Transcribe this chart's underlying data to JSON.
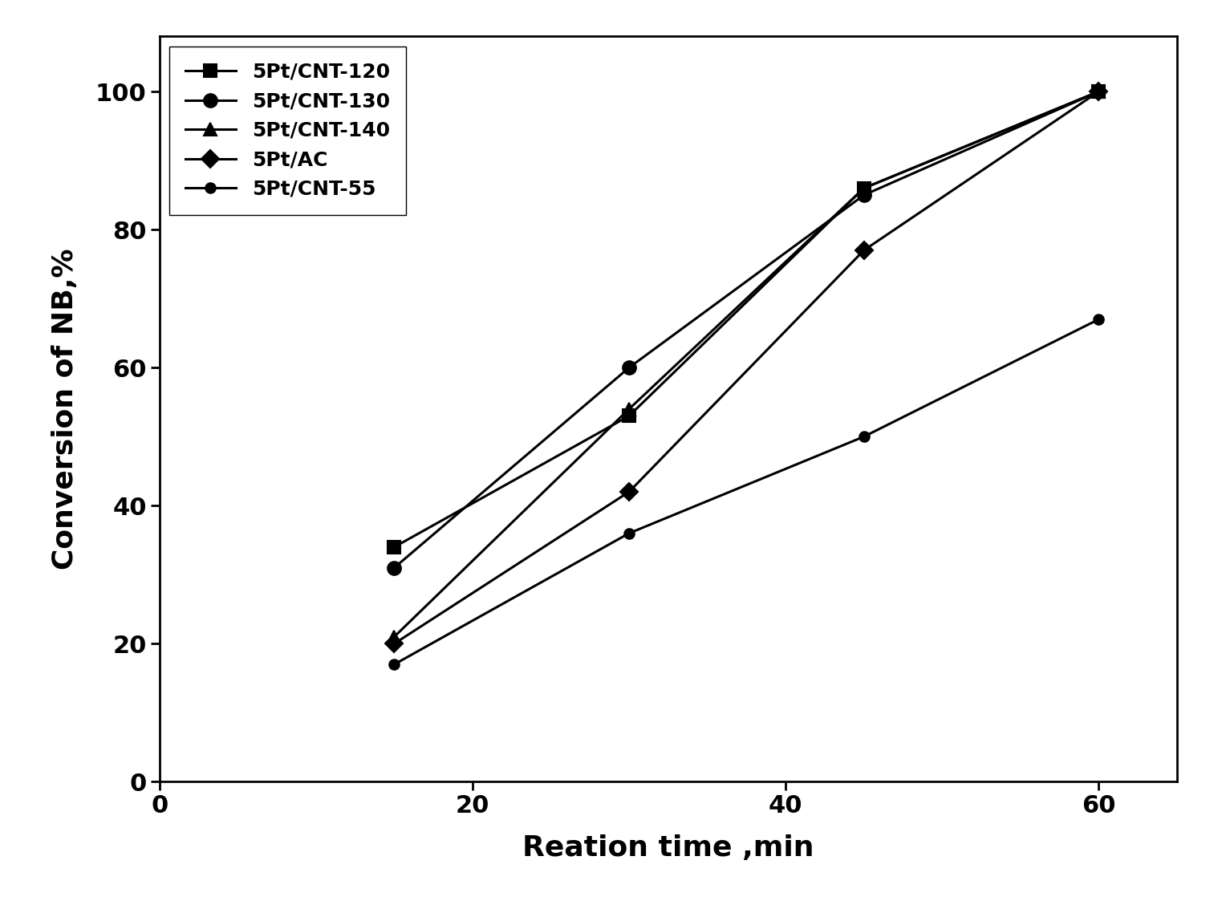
{
  "series": [
    {
      "label": "5Pt/CNT-120",
      "x": [
        15,
        30,
        45,
        60
      ],
      "y": [
        34,
        53,
        86,
        100
      ],
      "marker": "s",
      "markersize": 11,
      "color": "#000000",
      "linewidth": 2.2
    },
    {
      "label": "5Pt/CNT-130",
      "x": [
        15,
        30,
        45,
        60
      ],
      "y": [
        31,
        60,
        85,
        100
      ],
      "marker": "o",
      "markersize": 12,
      "color": "#000000",
      "linewidth": 2.2
    },
    {
      "label": "5Pt/CNT-140",
      "x": [
        15,
        30,
        45,
        60
      ],
      "y": [
        21,
        54,
        86,
        100
      ],
      "marker": "^",
      "markersize": 12,
      "color": "#000000",
      "linewidth": 2.2
    },
    {
      "label": "5Pt/AC",
      "x": [
        15,
        30,
        45,
        60
      ],
      "y": [
        20,
        42,
        77,
        100
      ],
      "marker": "D",
      "markersize": 11,
      "color": "#000000",
      "linewidth": 2.2
    },
    {
      "label": "5Pt/CNT-55",
      "x": [
        15,
        30,
        45,
        60
      ],
      "y": [
        17,
        36,
        50,
        67
      ],
      "marker": "o",
      "markersize": 9,
      "color": "#000000",
      "linewidth": 2.2
    }
  ],
  "xlabel": "Reation time ,min",
  "ylabel": "Conversion of NB,%",
  "xlim": [
    0,
    65
  ],
  "ylim": [
    0,
    108
  ],
  "xticks": [
    0,
    20,
    40,
    60
  ],
  "yticks": [
    0,
    20,
    40,
    60,
    80,
    100
  ],
  "xlabel_fontsize": 26,
  "ylabel_fontsize": 26,
  "tick_fontsize": 22,
  "legend_fontsize": 18,
  "legend_loc": "upper left",
  "background_color": "#ffffff",
  "figsize": [
    15.28,
    11.33
  ],
  "dpi": 100
}
